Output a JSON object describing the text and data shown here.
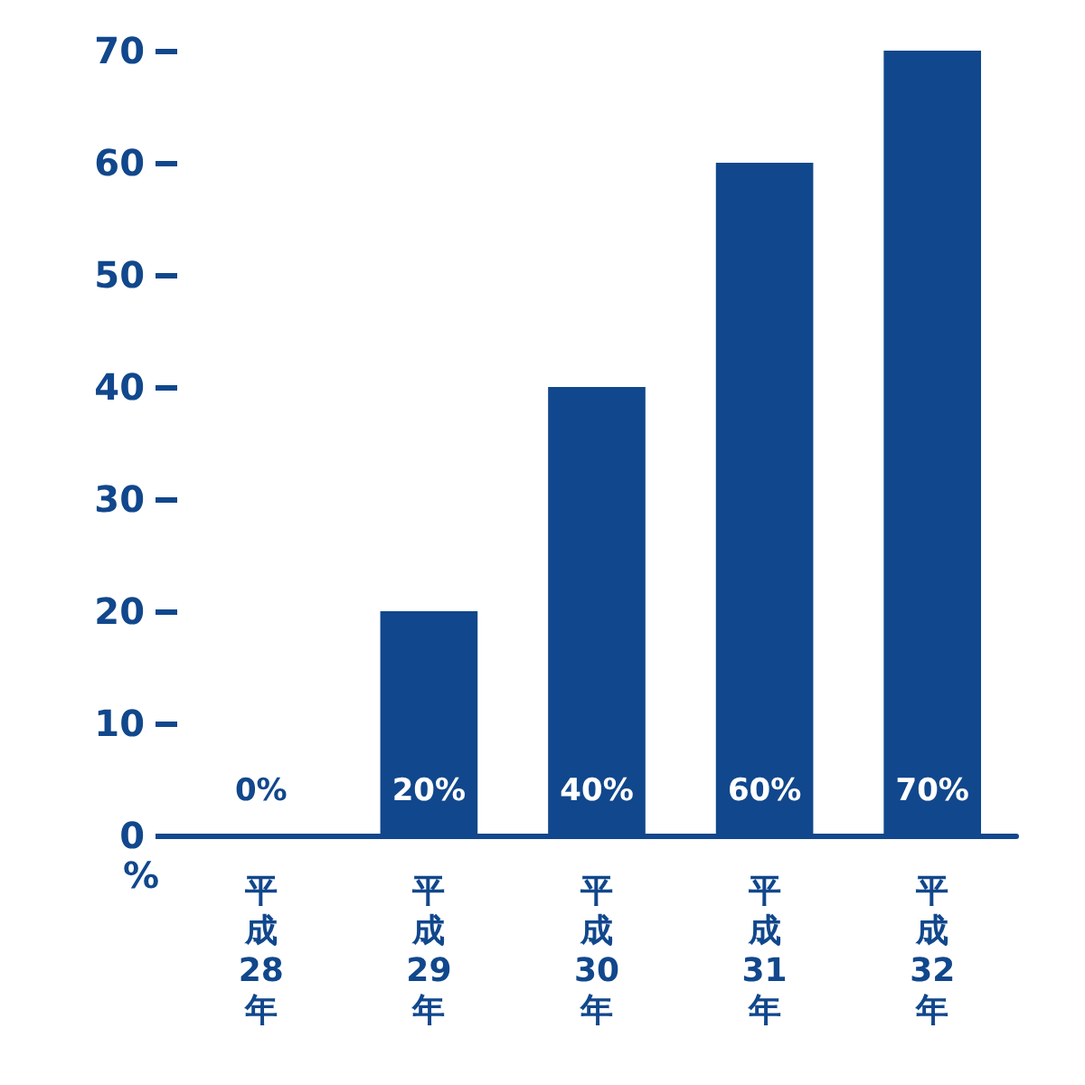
{
  "chart_data": {
    "type": "bar",
    "ylabel": "%",
    "categories": [
      "平成28年",
      "平成29年",
      "平成30年",
      "平成31年",
      "平成32年"
    ],
    "values": [
      0,
      20,
      40,
      60,
      70
    ],
    "value_labels": [
      "0%",
      "20%",
      "40%",
      "60%",
      "70%"
    ],
    "color": "#11478c",
    "ylim": [
      0,
      70
    ],
    "yticks": [
      0,
      10,
      20,
      30,
      40,
      50,
      60,
      70
    ],
    "grid": false
  }
}
